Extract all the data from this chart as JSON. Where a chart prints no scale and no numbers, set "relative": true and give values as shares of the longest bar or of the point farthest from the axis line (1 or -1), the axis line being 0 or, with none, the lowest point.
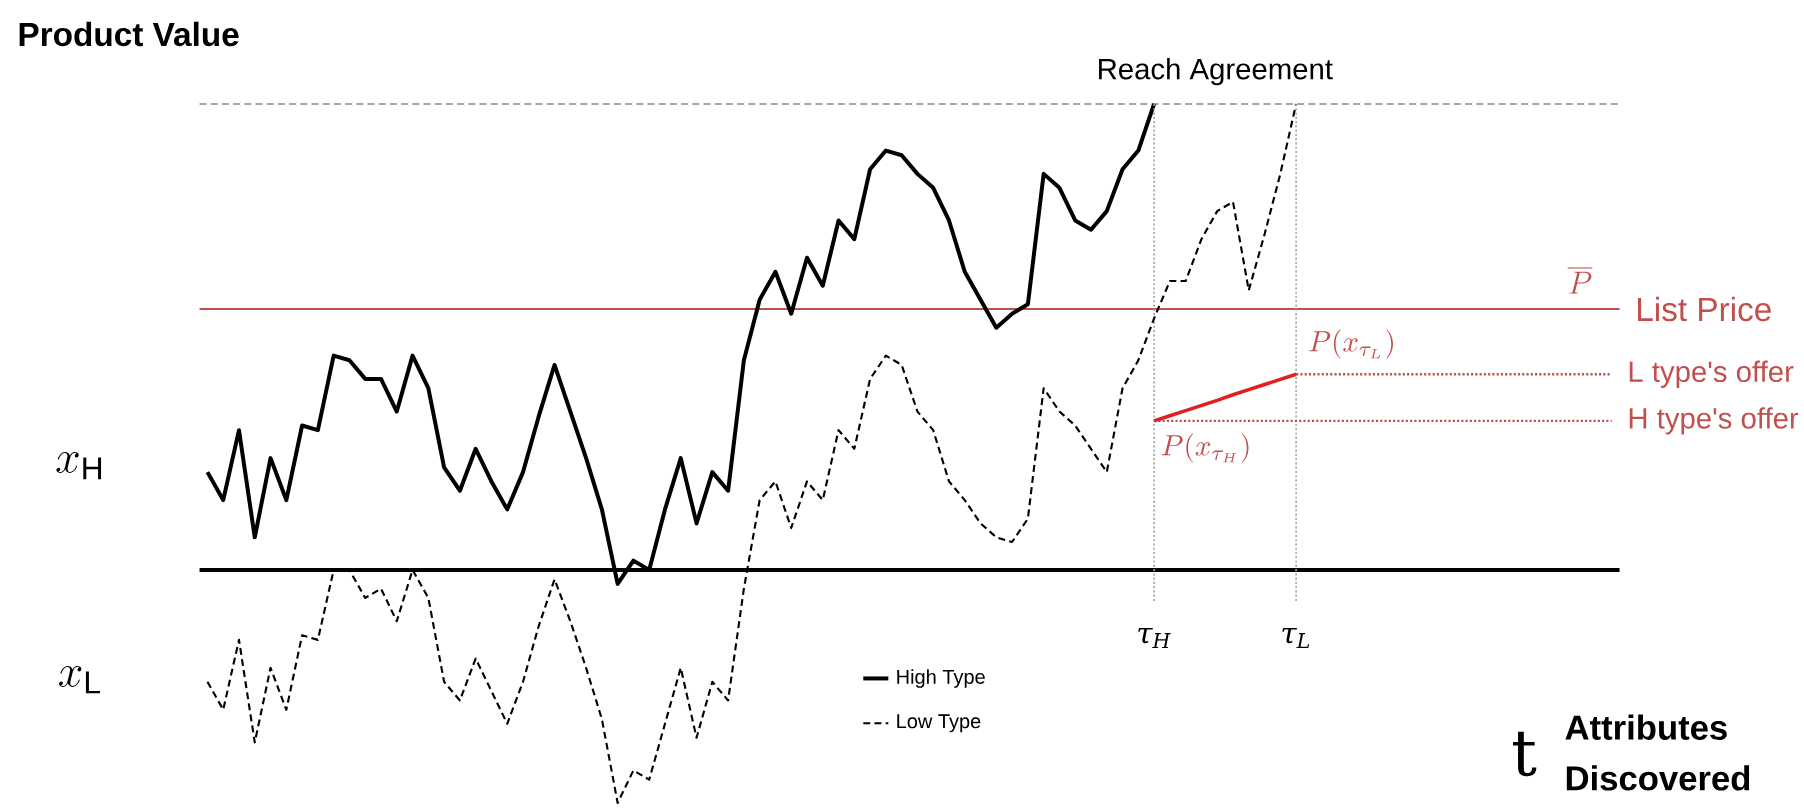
{
  "chart_data": {
    "type": "line",
    "relative": true,
    "ylabel": "Product Value",
    "xlabel": "Attributes Discovered",
    "categories": [
      null,
      null,
      null,
      null,
      null,
      null,
      null,
      null,
      null,
      null,
      null,
      null,
      null,
      null,
      null,
      null,
      null,
      null,
      null,
      null,
      null,
      null,
      null,
      null,
      null,
      null,
      null,
      null,
      null,
      null,
      null,
      null,
      null,
      null,
      null,
      null,
      null,
      null,
      null,
      null,
      null,
      null,
      null,
      null,
      null,
      null,
      null,
      null,
      null,
      null,
      null,
      null,
      null,
      null,
      null,
      null,
      null,
      null,
      null,
      null,
      null,
      null,
      null,
      null,
      null,
      null,
      null,
      null,
      null,
      null,
      null,
      null,
      null,
      null,
      null,
      null,
      null,
      null,
      null,
      null,
      null,
      null,
      null,
      null,
      null,
      null,
      null,
      null,
      null,
      null
    ],
    "series": [
      {
        "name": "High Type",
        "color": "#000000",
        "line_style": "solid",
        "values": [
          0.21,
          0.15,
          0.3,
          0.07,
          0.24,
          0.15,
          0.31,
          0.3,
          0.46,
          0.45,
          0.41,
          0.41,
          0.34,
          0.46,
          0.39,
          0.22,
          0.17,
          0.26,
          0.19,
          0.13,
          0.21,
          0.33,
          0.44,
          0.34,
          0.24,
          0.13,
          -0.03,
          0.02,
          0.0,
          0.13,
          0.24,
          0.1,
          0.21,
          0.17,
          0.45,
          0.58,
          0.64,
          0.55,
          0.67,
          0.61,
          0.75,
          0.71,
          0.86,
          0.9,
          0.89,
          0.85,
          0.82,
          0.75,
          0.64,
          0.58,
          0.52,
          0.55,
          0.57,
          0.85,
          0.82,
          0.75,
          0.73,
          0.77,
          0.86,
          0.9,
          1.0,
          null,
          null,
          null,
          null,
          null,
          null,
          null,
          null,
          null,
          null,
          null,
          null,
          null,
          null,
          null,
          null,
          null,
          null,
          null,
          null,
          null,
          null,
          null,
          null,
          null,
          null,
          null,
          null,
          null
        ]
      },
      {
        "name": "Low Type",
        "color": "#000000",
        "line_style": "dashed",
        "values": [
          -0.24,
          -0.3,
          -0.15,
          -0.37,
          -0.21,
          -0.3,
          -0.14,
          -0.15,
          0.0,
          0.0,
          -0.06,
          -0.04,
          -0.11,
          0.0,
          -0.06,
          -0.24,
          -0.28,
          -0.19,
          -0.26,
          -0.33,
          -0.24,
          -0.12,
          -0.02,
          -0.11,
          -0.21,
          -0.32,
          -0.5,
          -0.43,
          -0.45,
          -0.33,
          -0.21,
          -0.36,
          -0.24,
          -0.28,
          -0.04,
          0.15,
          0.19,
          0.09,
          0.19,
          0.15,
          0.3,
          0.26,
          0.41,
          0.46,
          0.44,
          0.34,
          0.3,
          0.19,
          0.15,
          0.1,
          0.07,
          0.06,
          0.11,
          0.39,
          0.34,
          0.31,
          0.26,
          0.21,
          0.39,
          0.45,
          0.54,
          0.62,
          0.62,
          0.71,
          0.77,
          0.79,
          0.6,
          0.72,
          0.85,
          1.0,
          null,
          null,
          null,
          null,
          null,
          null,
          null,
          null,
          null,
          null,
          null,
          null,
          null,
          null,
          null,
          null,
          null,
          null,
          null,
          null
        ]
      },
      {
        "name": "L type's offer",
        "color": "#c0504d",
        "line_style": "dotted",
        "values": [
          null,
          null,
          null,
          null,
          null,
          null,
          null,
          null,
          null,
          null,
          null,
          null,
          null,
          null,
          null,
          null,
          null,
          null,
          null,
          null,
          null,
          null,
          null,
          null,
          null,
          null,
          null,
          null,
          null,
          null,
          null,
          null,
          null,
          null,
          null,
          null,
          null,
          null,
          null,
          null,
          null,
          null,
          null,
          null,
          null,
          null,
          null,
          null,
          null,
          null,
          null,
          null,
          null,
          null,
          null,
          null,
          null,
          null,
          null,
          null,
          null,
          null,
          null,
          null,
          null,
          null,
          null,
          null,
          null,
          0.42,
          0.42,
          0.42,
          0.42,
          0.42,
          0.42,
          0.42,
          0.42,
          0.42,
          0.42,
          0.42,
          0.42,
          0.42,
          0.42,
          0.42,
          0.42,
          0.42,
          0.42,
          0.42,
          0.42,
          0.42
        ]
      },
      {
        "name": "H type's offer",
        "color": "#c0504d",
        "line_style": "dotted",
        "values": [
          null,
          null,
          null,
          null,
          null,
          null,
          null,
          null,
          null,
          null,
          null,
          null,
          null,
          null,
          null,
          null,
          null,
          null,
          null,
          null,
          null,
          null,
          null,
          null,
          null,
          null,
          null,
          null,
          null,
          null,
          null,
          null,
          null,
          null,
          null,
          null,
          null,
          null,
          null,
          null,
          null,
          null,
          null,
          null,
          null,
          null,
          null,
          null,
          null,
          null,
          null,
          null,
          null,
          null,
          null,
          null,
          null,
          null,
          null,
          null,
          0.32,
          0.32,
          0.32,
          0.32,
          0.32,
          0.32,
          0.32,
          0.32,
          0.32,
          0.32,
          0.32,
          0.32,
          0.32,
          0.32,
          0.32,
          0.32,
          0.32,
          0.32,
          0.32,
          0.32,
          0.32,
          0.32,
          0.32,
          0.32,
          0.32,
          0.32,
          0.32,
          0.32,
          0.32,
          0.32
        ]
      },
      {
        "color": "#e02020",
        "line_style": "solid",
        "values": [
          null,
          null,
          null,
          null,
          null,
          null,
          null,
          null,
          null,
          null,
          null,
          null,
          null,
          null,
          null,
          null,
          null,
          null,
          null,
          null,
          null,
          null,
          null,
          null,
          null,
          null,
          null,
          null,
          null,
          null,
          null,
          null,
          null,
          null,
          null,
          null,
          null,
          null,
          null,
          null,
          null,
          null,
          null,
          null,
          null,
          null,
          null,
          null,
          null,
          null,
          null,
          null,
          null,
          null,
          null,
          null,
          null,
          null,
          null,
          null,
          0.32,
          0.331,
          0.342,
          0.353,
          0.364,
          0.376,
          0.387,
          0.398,
          0.409,
          0.42,
          null,
          null,
          null,
          null,
          null,
          null,
          null,
          null,
          null,
          null,
          null,
          null,
          null,
          null,
          null,
          null,
          null,
          null,
          null,
          null
        ]
      }
    ],
    "ref_lines": [
      {
        "axis": "y",
        "value": 1,
        "label": "Reach Agreement",
        "color": "#a6a6a6",
        "line_style": "dashed"
      },
      {
        "axis": "y",
        "value": 0.56,
        "label": "List Price",
        "color": "#c0504d",
        "line_style": "solid"
      },
      {
        "axis": "y",
        "value": 0,
        "color": "#000000",
        "line_style": "solid"
      }
    ],
    "annotations": [
      "x_{\\mathrm{H}}",
      "x_{\\mathrm{L}}",
      "\\overline{P}",
      "P(x_{\\tau_L})",
      "P(x_{\\tau_H})",
      "t",
      "τ$_{H}$",
      "τ$_{L}$"
    ],
    "legend": "bottom"
  }
}
